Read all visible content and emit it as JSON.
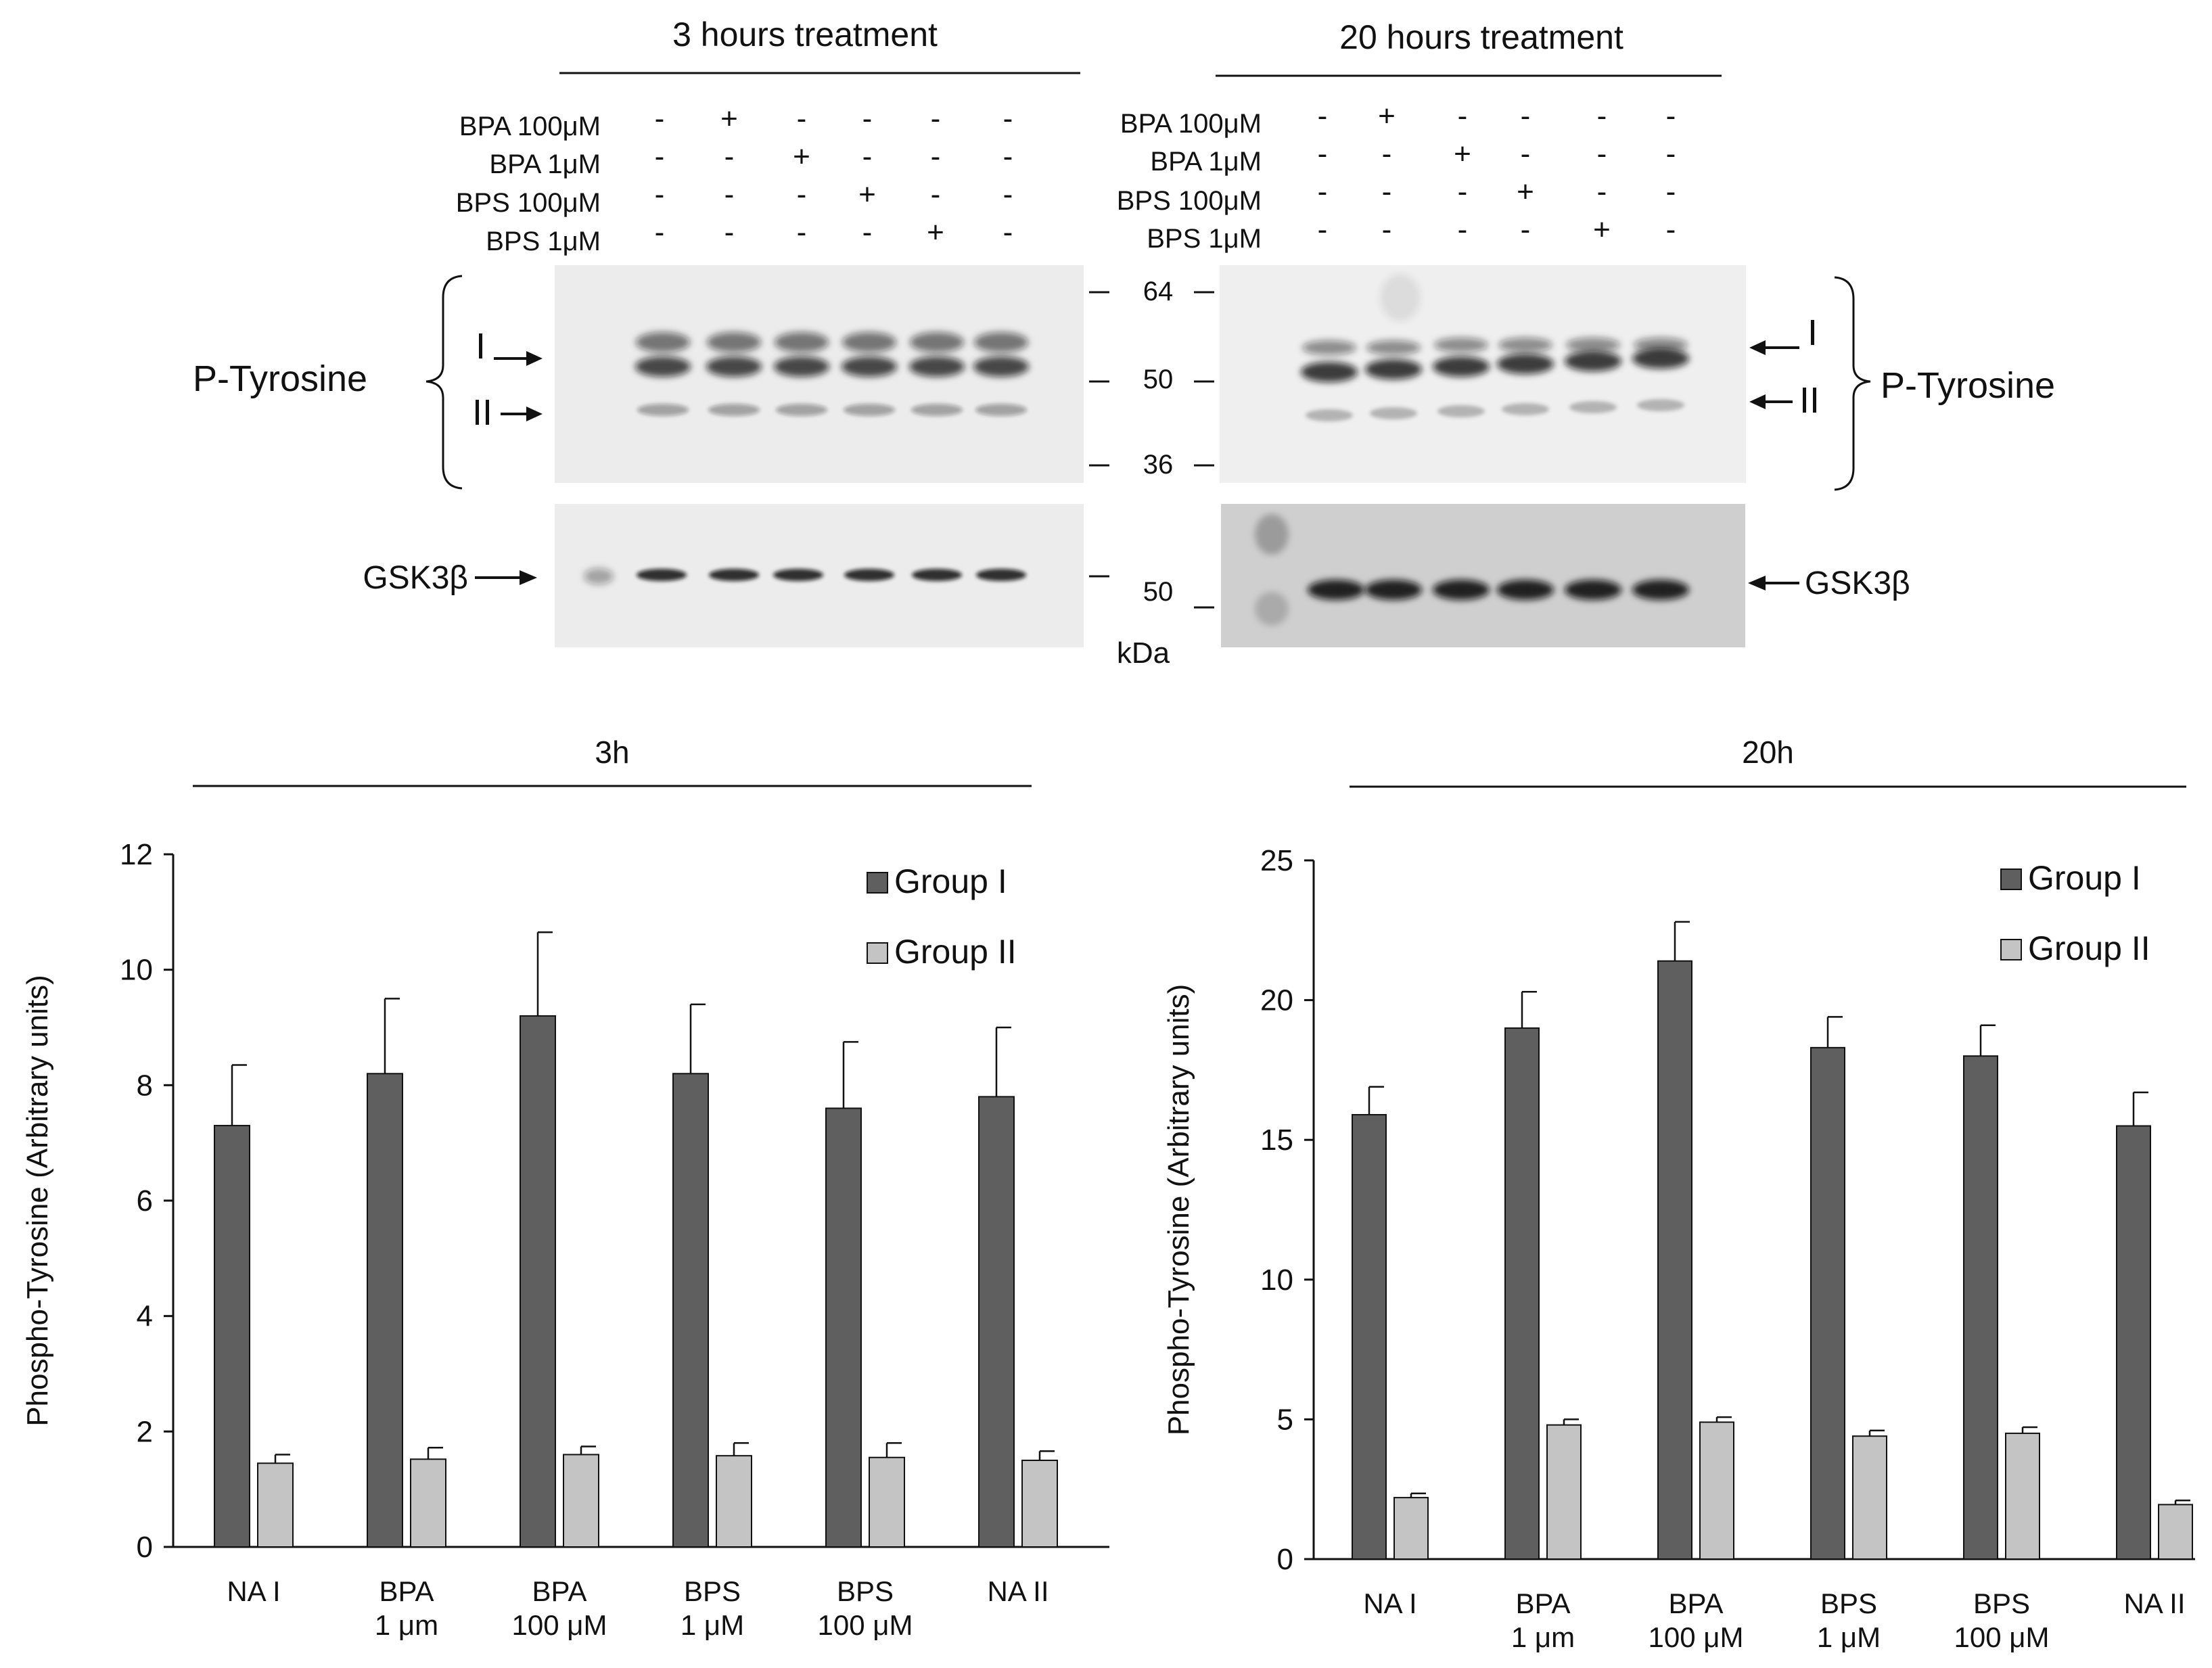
{
  "blots": {
    "left": {
      "title": "3 hours treatment",
      "treatments": [
        {
          "label": "BPA 100μM",
          "signs": [
            "-",
            "+",
            "-",
            "-",
            "-",
            "-"
          ]
        },
        {
          "label": "BPA 1μM",
          "signs": [
            "-",
            "-",
            "+",
            "-",
            "-",
            "-"
          ]
        },
        {
          "label": "BPS 100μM",
          "signs": [
            "-",
            "-",
            "-",
            "+",
            "-",
            "-"
          ]
        },
        {
          "label": "BPS 1μM",
          "signs": [
            "-",
            "-",
            "-",
            "-",
            "+",
            "-"
          ]
        }
      ],
      "ptyr_label": "P-Tyrosine",
      "band_I": "I",
      "band_II": "II",
      "gsk_label": "GSK3β",
      "markers": [
        "64",
        "50",
        "36"
      ],
      "gsk_marker": "50",
      "unit": "kDa"
    },
    "right": {
      "title": "20 hours treatment",
      "treatments": [
        {
          "label": "BPA 100μM",
          "signs": [
            "-",
            "+",
            "-",
            "-",
            "-",
            "-"
          ]
        },
        {
          "label": "BPA 1μM",
          "signs": [
            "-",
            "-",
            "+",
            "-",
            "-",
            "-"
          ]
        },
        {
          "label": "BPS 100μM",
          "signs": [
            "-",
            "-",
            "-",
            "+",
            "-",
            "-"
          ]
        },
        {
          "label": "BPS 1μM",
          "signs": [
            "-",
            "-",
            "-",
            "-",
            "+",
            "-"
          ]
        }
      ],
      "ptyr_label": "P-Tyrosine",
      "band_I": "I",
      "band_II": "II",
      "gsk_label": "GSK3β"
    }
  },
  "chart_data": [
    {
      "type": "bar",
      "title": "3h",
      "ylabel": "Phospho-Tyrosine (Arbitrary units)",
      "xlabel": "",
      "ylim": [
        0,
        12
      ],
      "yticks": [
        0,
        2,
        4,
        6,
        8,
        10,
        12
      ],
      "categories": [
        [
          "NA I"
        ],
        [
          "BPA",
          "1 μm"
        ],
        [
          "BPA",
          "100 μM"
        ],
        [
          "BPS",
          "1 μM"
        ],
        [
          "BPS",
          "100  μM"
        ],
        [
          "NA II"
        ]
      ],
      "series": [
        {
          "name": "Group I",
          "color": "#5f5f5f",
          "values": [
            7.3,
            8.2,
            9.2,
            8.2,
            7.6,
            7.8
          ],
          "errors": [
            1.05,
            1.3,
            1.45,
            1.2,
            1.15,
            1.2
          ]
        },
        {
          "name": "Group II",
          "color": "#c4c4c4",
          "values": [
            1.45,
            1.52,
            1.6,
            1.58,
            1.55,
            1.5
          ],
          "errors": [
            0.15,
            0.2,
            0.14,
            0.22,
            0.25,
            0.16
          ]
        }
      ],
      "legend": "top-right"
    },
    {
      "type": "bar",
      "title": "20h",
      "ylabel": "Phospho-Tyrosine (Arbitrary units)",
      "xlabel": "",
      "ylim": [
        0,
        25
      ],
      "yticks": [
        0,
        5,
        10,
        15,
        20,
        25
      ],
      "categories": [
        [
          "NA I"
        ],
        [
          "BPA",
          "1 μm"
        ],
        [
          "BPA",
          "100 μM"
        ],
        [
          "BPS",
          "1 μM"
        ],
        [
          "BPS",
          "100  μM"
        ],
        [
          "NA II"
        ]
      ],
      "series": [
        {
          "name": "Group I",
          "color": "#5f5f5f",
          "values": [
            15.9,
            19.0,
            21.4,
            18.3,
            18.0,
            15.5
          ],
          "errors": [
            1.0,
            1.3,
            1.4,
            1.1,
            1.1,
            1.2
          ]
        },
        {
          "name": "Group II",
          "color": "#c4c4c4",
          "values": [
            2.2,
            4.8,
            4.9,
            4.4,
            4.5,
            1.95
          ],
          "errors": [
            0.15,
            0.2,
            0.18,
            0.2,
            0.22,
            0.15
          ]
        }
      ],
      "legend": "top-right"
    }
  ]
}
